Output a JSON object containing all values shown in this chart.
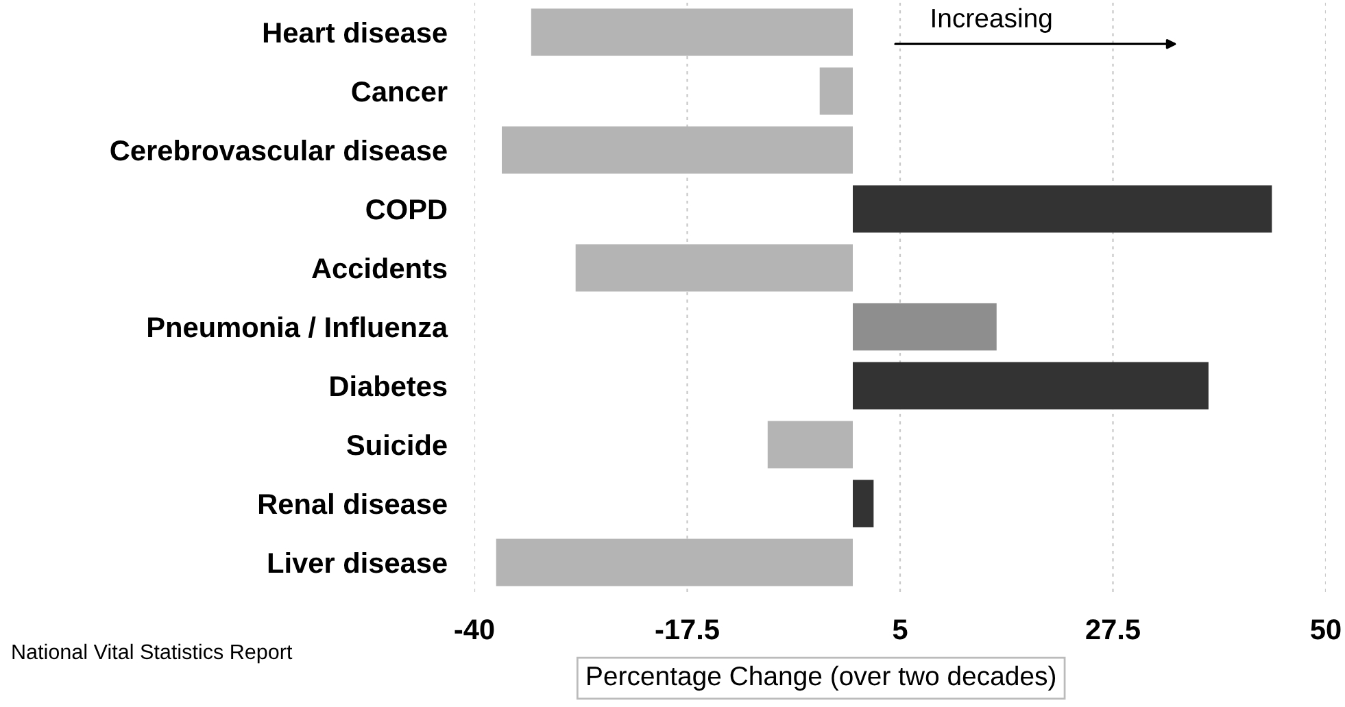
{
  "chart_data": {
    "type": "bar",
    "orientation": "horizontal",
    "xlabel": "Percentage Change (over two decades)",
    "categories": [
      "Heart disease",
      "Cancer",
      "Cerebrovascular disease",
      "COPD",
      "Accidents",
      "Pneumonia / Influenza",
      "Diabetes",
      "Suicide",
      "Renal disease",
      "Liver disease"
    ],
    "values": [
      -34,
      -3.5,
      -37.1,
      44.3,
      -29.3,
      15.2,
      37.6,
      -9,
      2.2,
      -37.7
    ],
    "colors": [
      "#b4b4b4",
      "#b4b4b4",
      "#b4b4b4",
      "#333333",
      "#b4b4b4",
      "#8e8e8e",
      "#333333",
      "#b4b4b4",
      "#333333",
      "#b4b4b4"
    ],
    "xlim": [
      -40,
      50
    ],
    "xticks": [
      -40,
      -17.5,
      5,
      27.5,
      50
    ],
    "grid": "x",
    "annotations": [
      "Increasing",
      "National Vital Statistics Report"
    ]
  }
}
